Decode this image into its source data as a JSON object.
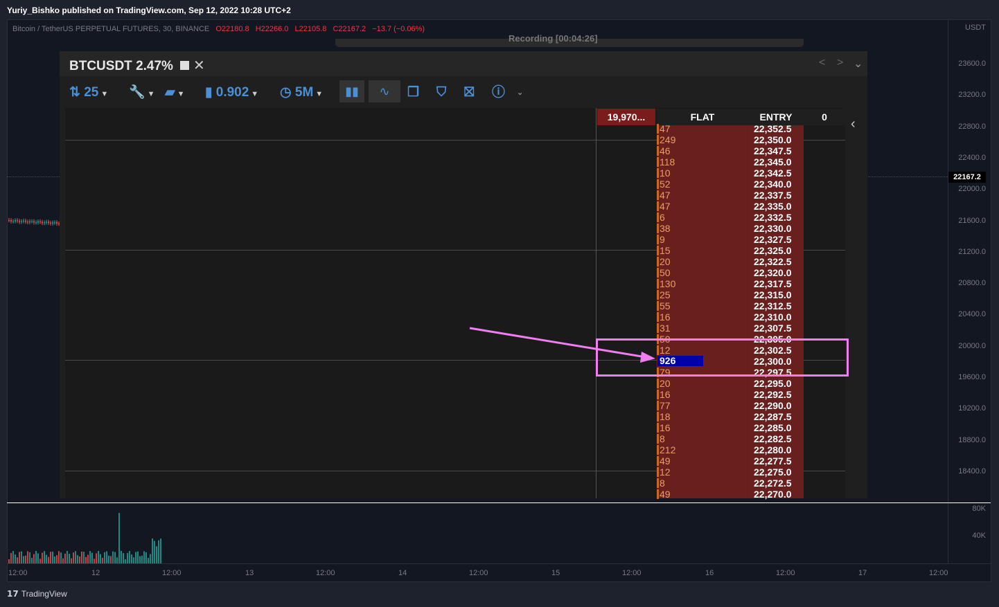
{
  "header": {
    "published": "Yuriy_Bishko published on TradingView.com, Sep 12, 2022 10:28 UTC+2"
  },
  "legend": {
    "symbol": "Bitcoin / TetherUS PERPETUAL FUTURES, 30, BINANCE",
    "open": "O22180.8",
    "high": "H22266.0",
    "low": "L22105.8",
    "close": "C22167.2",
    "change": "−13.7 (−0.06%)"
  },
  "price_axis": {
    "currency": "USDT",
    "ticks": [
      "23600.0",
      "23200.0",
      "22800.0",
      "22400.0",
      "22000.0",
      "21600.0",
      "21200.0",
      "20800.0",
      "20400.0",
      "20000.0",
      "19600.0",
      "19200.0",
      "18800.0",
      "18400.0"
    ],
    "last_price": "22167.2",
    "volume_ticks": [
      "80K",
      "40K"
    ]
  },
  "time_axis": {
    "ticks": [
      "12:00",
      "12",
      "12:00",
      "13",
      "12:00",
      "14",
      "12:00",
      "15",
      "12:00",
      "16",
      "12:00",
      "17",
      "12:00"
    ]
  },
  "footer": {
    "brand": "TradingView",
    "logo": "17"
  },
  "overlay": {
    "strip_text": "Recording [00:04:26]",
    "title": "BTCUSDT",
    "pct": "2.47%",
    "toolbar": {
      "qty": "25",
      "size": "0.902",
      "tf": "5M"
    },
    "icons": [
      "updown-arrows-icon",
      "wrench-icon",
      "folder-icon",
      "file-icon",
      "clock-icon",
      "bars-icon",
      "line-icon",
      "copy-icon",
      "shield-icon",
      "shield-x-icon",
      "info-icon"
    ]
  },
  "dom": {
    "headers": {
      "position": "19,970...",
      "status": "FLAT",
      "entry": "ENTRY",
      "pnl": "0"
    },
    "rows": [
      {
        "v": "47",
        "p": "22,352.5"
      },
      {
        "v": "249",
        "p": "22,350.0"
      },
      {
        "v": "46",
        "p": "22,347.5"
      },
      {
        "v": "118",
        "p": "22,345.0"
      },
      {
        "v": "10",
        "p": "22,342.5"
      },
      {
        "v": "52",
        "p": "22,340.0"
      },
      {
        "v": "47",
        "p": "22,337.5"
      },
      {
        "v": "47",
        "p": "22,335.0"
      },
      {
        "v": "6",
        "p": "22,332.5"
      },
      {
        "v": "38",
        "p": "22,330.0"
      },
      {
        "v": "9",
        "p": "22,327.5"
      },
      {
        "v": "15",
        "p": "22,325.0"
      },
      {
        "v": "20",
        "p": "22,322.5"
      },
      {
        "v": "50",
        "p": "22,320.0"
      },
      {
        "v": "130",
        "p": "22,317.5"
      },
      {
        "v": "25",
        "p": "22,315.0"
      },
      {
        "v": "55",
        "p": "22,312.5"
      },
      {
        "v": "16",
        "p": "22,310.0"
      },
      {
        "v": "31",
        "p": "22,307.5"
      },
      {
        "v": "50",
        "p": "22,305.0"
      },
      {
        "v": "12",
        "p": "22,302.5"
      },
      {
        "v": "926",
        "p": "22,300.0"
      },
      {
        "v": "79",
        "p": "22,297.5"
      },
      {
        "v": "20",
        "p": "22,295.0"
      },
      {
        "v": "16",
        "p": "22,292.5"
      },
      {
        "v": "77",
        "p": "22,290.0"
      },
      {
        "v": "18",
        "p": "22,287.5"
      },
      {
        "v": "16",
        "p": "22,285.0"
      },
      {
        "v": "8",
        "p": "22,282.5"
      },
      {
        "v": "212",
        "p": "22,280.0"
      },
      {
        "v": "49",
        "p": "22,277.5"
      },
      {
        "v": "12",
        "p": "22,275.0"
      },
      {
        "v": "8",
        "p": "22,272.5"
      },
      {
        "v": "49",
        "p": "22,270.0"
      }
    ],
    "highlight_index": 21
  },
  "colors": {
    "up": "#26a69a",
    "down": "#ef5350",
    "annotation": "#f07ef0",
    "highlight": "#0000a8"
  }
}
